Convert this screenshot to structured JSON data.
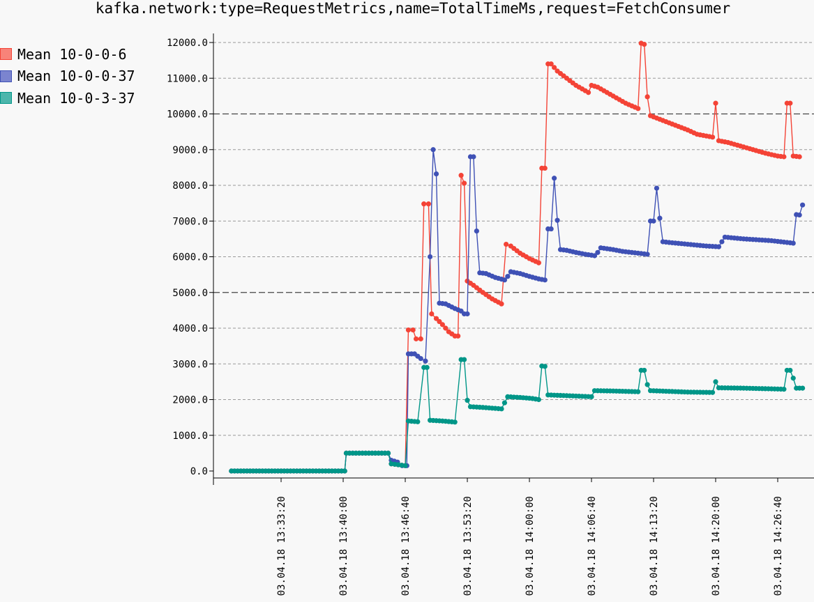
{
  "chart_data": {
    "type": "line",
    "title": "kafka.network:type=RequestMetrics,name=TotalTimeMs,request=FetchConsumer",
    "xlabel": "",
    "ylabel": "",
    "ylim": [
      0,
      12000
    ],
    "xlim": [
      "03.04.18 13:27:00",
      "03.04.18 14:31:20"
    ],
    "yticks": [
      "0.0",
      "1000.0",
      "2000.0",
      "3000.0",
      "4000.0",
      "5000.0",
      "6000.0",
      "7000.0",
      "8000.0",
      "9000.0",
      "10000.0",
      "11000.0",
      "12000.0"
    ],
    "xticks": [
      "03.04.18 13:33:20",
      "03.04.18 13:40:00",
      "03.04.18 13:46:40",
      "03.04.18 13:53:20",
      "03.04.18 14:00:00",
      "03.04.18 14:06:40",
      "03.04.18 14:13:20",
      "03.04.18 14:20:00",
      "03.04.18 14:26:40"
    ],
    "legend_position": "top-left",
    "grid": "horizontal dashed",
    "series": [
      {
        "name": "Mean 10-0-0-6",
        "color": "#f44336",
        "fill": "#f88379",
        "points": [
          [
            "03.04.18 13:28:00",
            0
          ],
          [
            "03.04.18 13:34:00",
            0
          ],
          [
            "03.04.18 13:40:10",
            0
          ],
          [
            "03.04.18 13:40:20",
            500
          ],
          [
            "03.04.18 13:44:50",
            500
          ],
          [
            "03.04.18 13:45:10",
            200
          ],
          [
            "03.04.18 13:46:40",
            150
          ],
          [
            "03.04.18 13:47:00",
            3950
          ],
          [
            "03.04.18 13:47:30",
            3950
          ],
          [
            "03.04.18 13:47:50",
            3700
          ],
          [
            "03.04.18 13:48:20",
            3700
          ],
          [
            "03.04.18 13:48:40",
            7480
          ],
          [
            "03.04.18 13:49:10",
            7480
          ],
          [
            "03.04.18 13:49:30",
            4400
          ],
          [
            "03.04.18 13:50:00",
            4270
          ],
          [
            "03.04.18 13:50:40",
            4100
          ],
          [
            "03.04.18 13:51:20",
            3900
          ],
          [
            "03.04.18 13:52:00",
            3780
          ],
          [
            "03.04.18 13:52:20",
            3780
          ],
          [
            "03.04.18 13:52:40",
            8280
          ],
          [
            "03.04.18 13:53:00",
            8060
          ],
          [
            "03.04.18 13:53:20",
            5320
          ],
          [
            "03.04.18 13:54:00",
            5200
          ],
          [
            "03.04.18 13:55:00",
            5000
          ],
          [
            "03.04.18 13:56:00",
            4820
          ],
          [
            "03.04.18 13:57:00",
            4680
          ],
          [
            "03.04.18 13:57:30",
            6350
          ],
          [
            "03.04.18 13:58:00",
            6300
          ],
          [
            "03.04.18 13:59:00",
            6100
          ],
          [
            "03.04.18 14:00:00",
            5950
          ],
          [
            "03.04.18 14:01:00",
            5830
          ],
          [
            "03.04.18 14:01:20",
            8480
          ],
          [
            "03.04.18 14:01:40",
            8480
          ],
          [
            "03.04.18 14:02:00",
            11400
          ],
          [
            "03.04.18 14:02:20",
            11400
          ],
          [
            "03.04.18 14:03:00",
            11200
          ],
          [
            "03.04.18 14:04:00",
            11000
          ],
          [
            "03.04.18 14:05:00",
            10800
          ],
          [
            "03.04.18 14:06:20",
            10600
          ],
          [
            "03.04.18 14:06:40",
            10800
          ],
          [
            "03.04.18 14:07:20",
            10750
          ],
          [
            "03.04.18 14:08:20",
            10600
          ],
          [
            "03.04.18 14:09:20",
            10450
          ],
          [
            "03.04.18 14:10:20",
            10300
          ],
          [
            "03.04.18 14:11:40",
            10150
          ],
          [
            "03.04.18 14:12:00",
            11980
          ],
          [
            "03.04.18 14:12:20",
            11950
          ],
          [
            "03.04.18 14:12:40",
            10480
          ],
          [
            "03.04.18 14:13:00",
            9950
          ],
          [
            "03.04.18 14:14:00",
            9850
          ],
          [
            "03.04.18 14:15:00",
            9750
          ],
          [
            "03.04.18 14:16:00",
            9650
          ],
          [
            "03.04.18 14:17:00",
            9550
          ],
          [
            "03.04.18 14:18:00",
            9430
          ],
          [
            "03.04.18 14:19:40",
            9350
          ],
          [
            "03.04.18 14:20:00",
            10300
          ],
          [
            "03.04.18 14:20:20",
            9250
          ],
          [
            "03.04.18 14:21:20",
            9200
          ],
          [
            "03.04.18 14:22:40",
            9100
          ],
          [
            "03.04.18 14:24:00",
            9000
          ],
          [
            "03.04.18 14:25:20",
            8900
          ],
          [
            "03.04.18 14:26:40",
            8820
          ],
          [
            "03.04.18 14:27:20",
            8800
          ],
          [
            "03.04.18 14:27:40",
            10300
          ],
          [
            "03.04.18 14:28:00",
            10300
          ],
          [
            "03.04.18 14:28:20",
            8820
          ],
          [
            "03.04.18 14:29:00",
            8800
          ]
        ]
      },
      {
        "name": "Mean 10-0-0-37",
        "color": "#3f51b5",
        "fill": "#7b84cf",
        "points": [
          [
            "03.04.18 13:28:00",
            0
          ],
          [
            "03.04.18 13:34:00",
            0
          ],
          [
            "03.04.18 13:40:10",
            0
          ],
          [
            "03.04.18 13:40:20",
            500
          ],
          [
            "03.04.18 13:44:50",
            500
          ],
          [
            "03.04.18 13:45:10",
            300
          ],
          [
            "03.04.18 13:45:50",
            250
          ],
          [
            "03.04.18 13:46:20",
            150
          ],
          [
            "03.04.18 13:46:50",
            150
          ],
          [
            "03.04.18 13:47:00",
            3280
          ],
          [
            "03.04.18 13:47:40",
            3280
          ],
          [
            "03.04.18 13:48:20",
            3150
          ],
          [
            "03.04.18 13:48:50",
            3080
          ],
          [
            "03.04.18 13:49:20",
            6000
          ],
          [
            "03.04.18 13:49:40",
            9000
          ],
          [
            "03.04.18 13:50:00",
            8320
          ],
          [
            "03.04.18 13:50:20",
            4700
          ],
          [
            "03.04.18 13:51:00",
            4680
          ],
          [
            "03.04.18 13:52:00",
            4550
          ],
          [
            "03.04.18 13:52:40",
            4480
          ],
          [
            "03.04.18 13:53:00",
            4400
          ],
          [
            "03.04.18 13:53:20",
            4400
          ],
          [
            "03.04.18 13:53:40",
            8800
          ],
          [
            "03.04.18 13:54:00",
            8800
          ],
          [
            "03.04.18 13:54:20",
            6720
          ],
          [
            "03.04.18 13:54:40",
            5550
          ],
          [
            "03.04.18 13:55:20",
            5530
          ],
          [
            "03.04.18 13:56:20",
            5420
          ],
          [
            "03.04.18 13:57:20",
            5350
          ],
          [
            "03.04.18 13:57:40",
            5450
          ],
          [
            "03.04.18 13:58:00",
            5580
          ],
          [
            "03.04.18 13:59:00",
            5530
          ],
          [
            "03.04.18 14:00:00",
            5450
          ],
          [
            "03.04.18 14:01:00",
            5380
          ],
          [
            "03.04.18 14:01:40",
            5350
          ],
          [
            "03.04.18 14:02:00",
            6780
          ],
          [
            "03.04.18 14:02:20",
            6780
          ],
          [
            "03.04.18 14:02:40",
            8200
          ],
          [
            "03.04.18 14:03:00",
            7020
          ],
          [
            "03.04.18 14:03:20",
            6200
          ],
          [
            "03.04.18 14:04:00",
            6180
          ],
          [
            "03.04.18 14:05:00",
            6120
          ],
          [
            "03.04.18 14:06:00",
            6070
          ],
          [
            "03.04.18 14:07:00",
            6030
          ],
          [
            "03.04.18 14:07:20",
            6120
          ],
          [
            "03.04.18 14:07:40",
            6250
          ],
          [
            "03.04.18 14:09:00",
            6200
          ],
          [
            "03.04.18 14:10:00",
            6150
          ],
          [
            "03.04.18 14:12:40",
            6070
          ],
          [
            "03.04.18 14:13:00",
            7000
          ],
          [
            "03.04.18 14:13:20",
            7000
          ],
          [
            "03.04.18 14:13:40",
            7920
          ],
          [
            "03.04.18 14:14:00",
            7080
          ],
          [
            "03.04.18 14:14:20",
            6420
          ],
          [
            "03.04.18 14:15:00",
            6400
          ],
          [
            "03.04.18 14:17:00",
            6350
          ],
          [
            "03.04.18 14:19:00",
            6300
          ],
          [
            "03.04.18 14:20:20",
            6280
          ],
          [
            "03.04.18 14:20:40",
            6420
          ],
          [
            "03.04.18 14:21:00",
            6550
          ],
          [
            "03.04.18 14:23:00",
            6500
          ],
          [
            "03.04.18 14:26:00",
            6450
          ],
          [
            "03.04.18 14:28:20",
            6380
          ],
          [
            "03.04.18 14:28:40",
            7180
          ],
          [
            "03.04.18 14:29:00",
            7170
          ],
          [
            "03.04.18 14:29:20",
            7450
          ]
        ]
      },
      {
        "name": "Mean 10-0-3-37",
        "color": "#009688",
        "fill": "#4db6ac",
        "points": [
          [
            "03.04.18 13:28:00",
            0
          ],
          [
            "03.04.18 13:34:00",
            0
          ],
          [
            "03.04.18 13:40:10",
            0
          ],
          [
            "03.04.18 13:40:20",
            500
          ],
          [
            "03.04.18 13:44:50",
            500
          ],
          [
            "03.04.18 13:45:10",
            200
          ],
          [
            "03.04.18 13:46:40",
            150
          ],
          [
            "03.04.18 13:47:00",
            1400
          ],
          [
            "03.04.18 13:48:00",
            1380
          ],
          [
            "03.04.18 13:48:40",
            2900
          ],
          [
            "03.04.18 13:49:00",
            2900
          ],
          [
            "03.04.18 13:49:20",
            1420
          ],
          [
            "03.04.18 13:50:40",
            1400
          ],
          [
            "03.04.18 13:52:00",
            1370
          ],
          [
            "03.04.18 13:52:40",
            3120
          ],
          [
            "03.04.18 13:53:00",
            3120
          ],
          [
            "03.04.18 13:53:20",
            1980
          ],
          [
            "03.04.18 13:53:40",
            1800
          ],
          [
            "03.04.18 13:55:00",
            1780
          ],
          [
            "03.04.18 13:57:00",
            1740
          ],
          [
            "03.04.18 13:57:40",
            2080
          ],
          [
            "03.04.18 13:59:00",
            2060
          ],
          [
            "03.04.18 14:00:20",
            2030
          ],
          [
            "03.04.18 14:01:00",
            2000
          ],
          [
            "03.04.18 14:01:20",
            2940
          ],
          [
            "03.04.18 14:01:40",
            2930
          ],
          [
            "03.04.18 14:02:00",
            2130
          ],
          [
            "03.04.18 14:04:00",
            2110
          ],
          [
            "03.04.18 14:06:40",
            2080
          ],
          [
            "03.04.18 14:07:00",
            2250
          ],
          [
            "03.04.18 14:09:00",
            2240
          ],
          [
            "03.04.18 14:11:40",
            2220
          ],
          [
            "03.04.18 14:12:00",
            2820
          ],
          [
            "03.04.18 14:12:20",
            2820
          ],
          [
            "03.04.18 14:12:40",
            2420
          ],
          [
            "03.04.18 14:13:00",
            2250
          ],
          [
            "03.04.18 14:15:00",
            2230
          ],
          [
            "03.04.18 14:17:00",
            2210
          ],
          [
            "03.04.18 14:19:40",
            2200
          ],
          [
            "03.04.18 14:20:00",
            2500
          ],
          [
            "03.04.18 14:20:20",
            2330
          ],
          [
            "03.04.18 14:23:00",
            2320
          ],
          [
            "03.04.18 14:26:00",
            2300
          ],
          [
            "03.04.18 14:27:20",
            2290
          ],
          [
            "03.04.18 14:27:40",
            2820
          ],
          [
            "03.04.18 14:28:00",
            2820
          ],
          [
            "03.04.18 14:28:20",
            2600
          ],
          [
            "03.04.18 14:28:40",
            2320
          ],
          [
            "03.04.18 14:29:20",
            2320
          ]
        ]
      }
    ]
  }
}
